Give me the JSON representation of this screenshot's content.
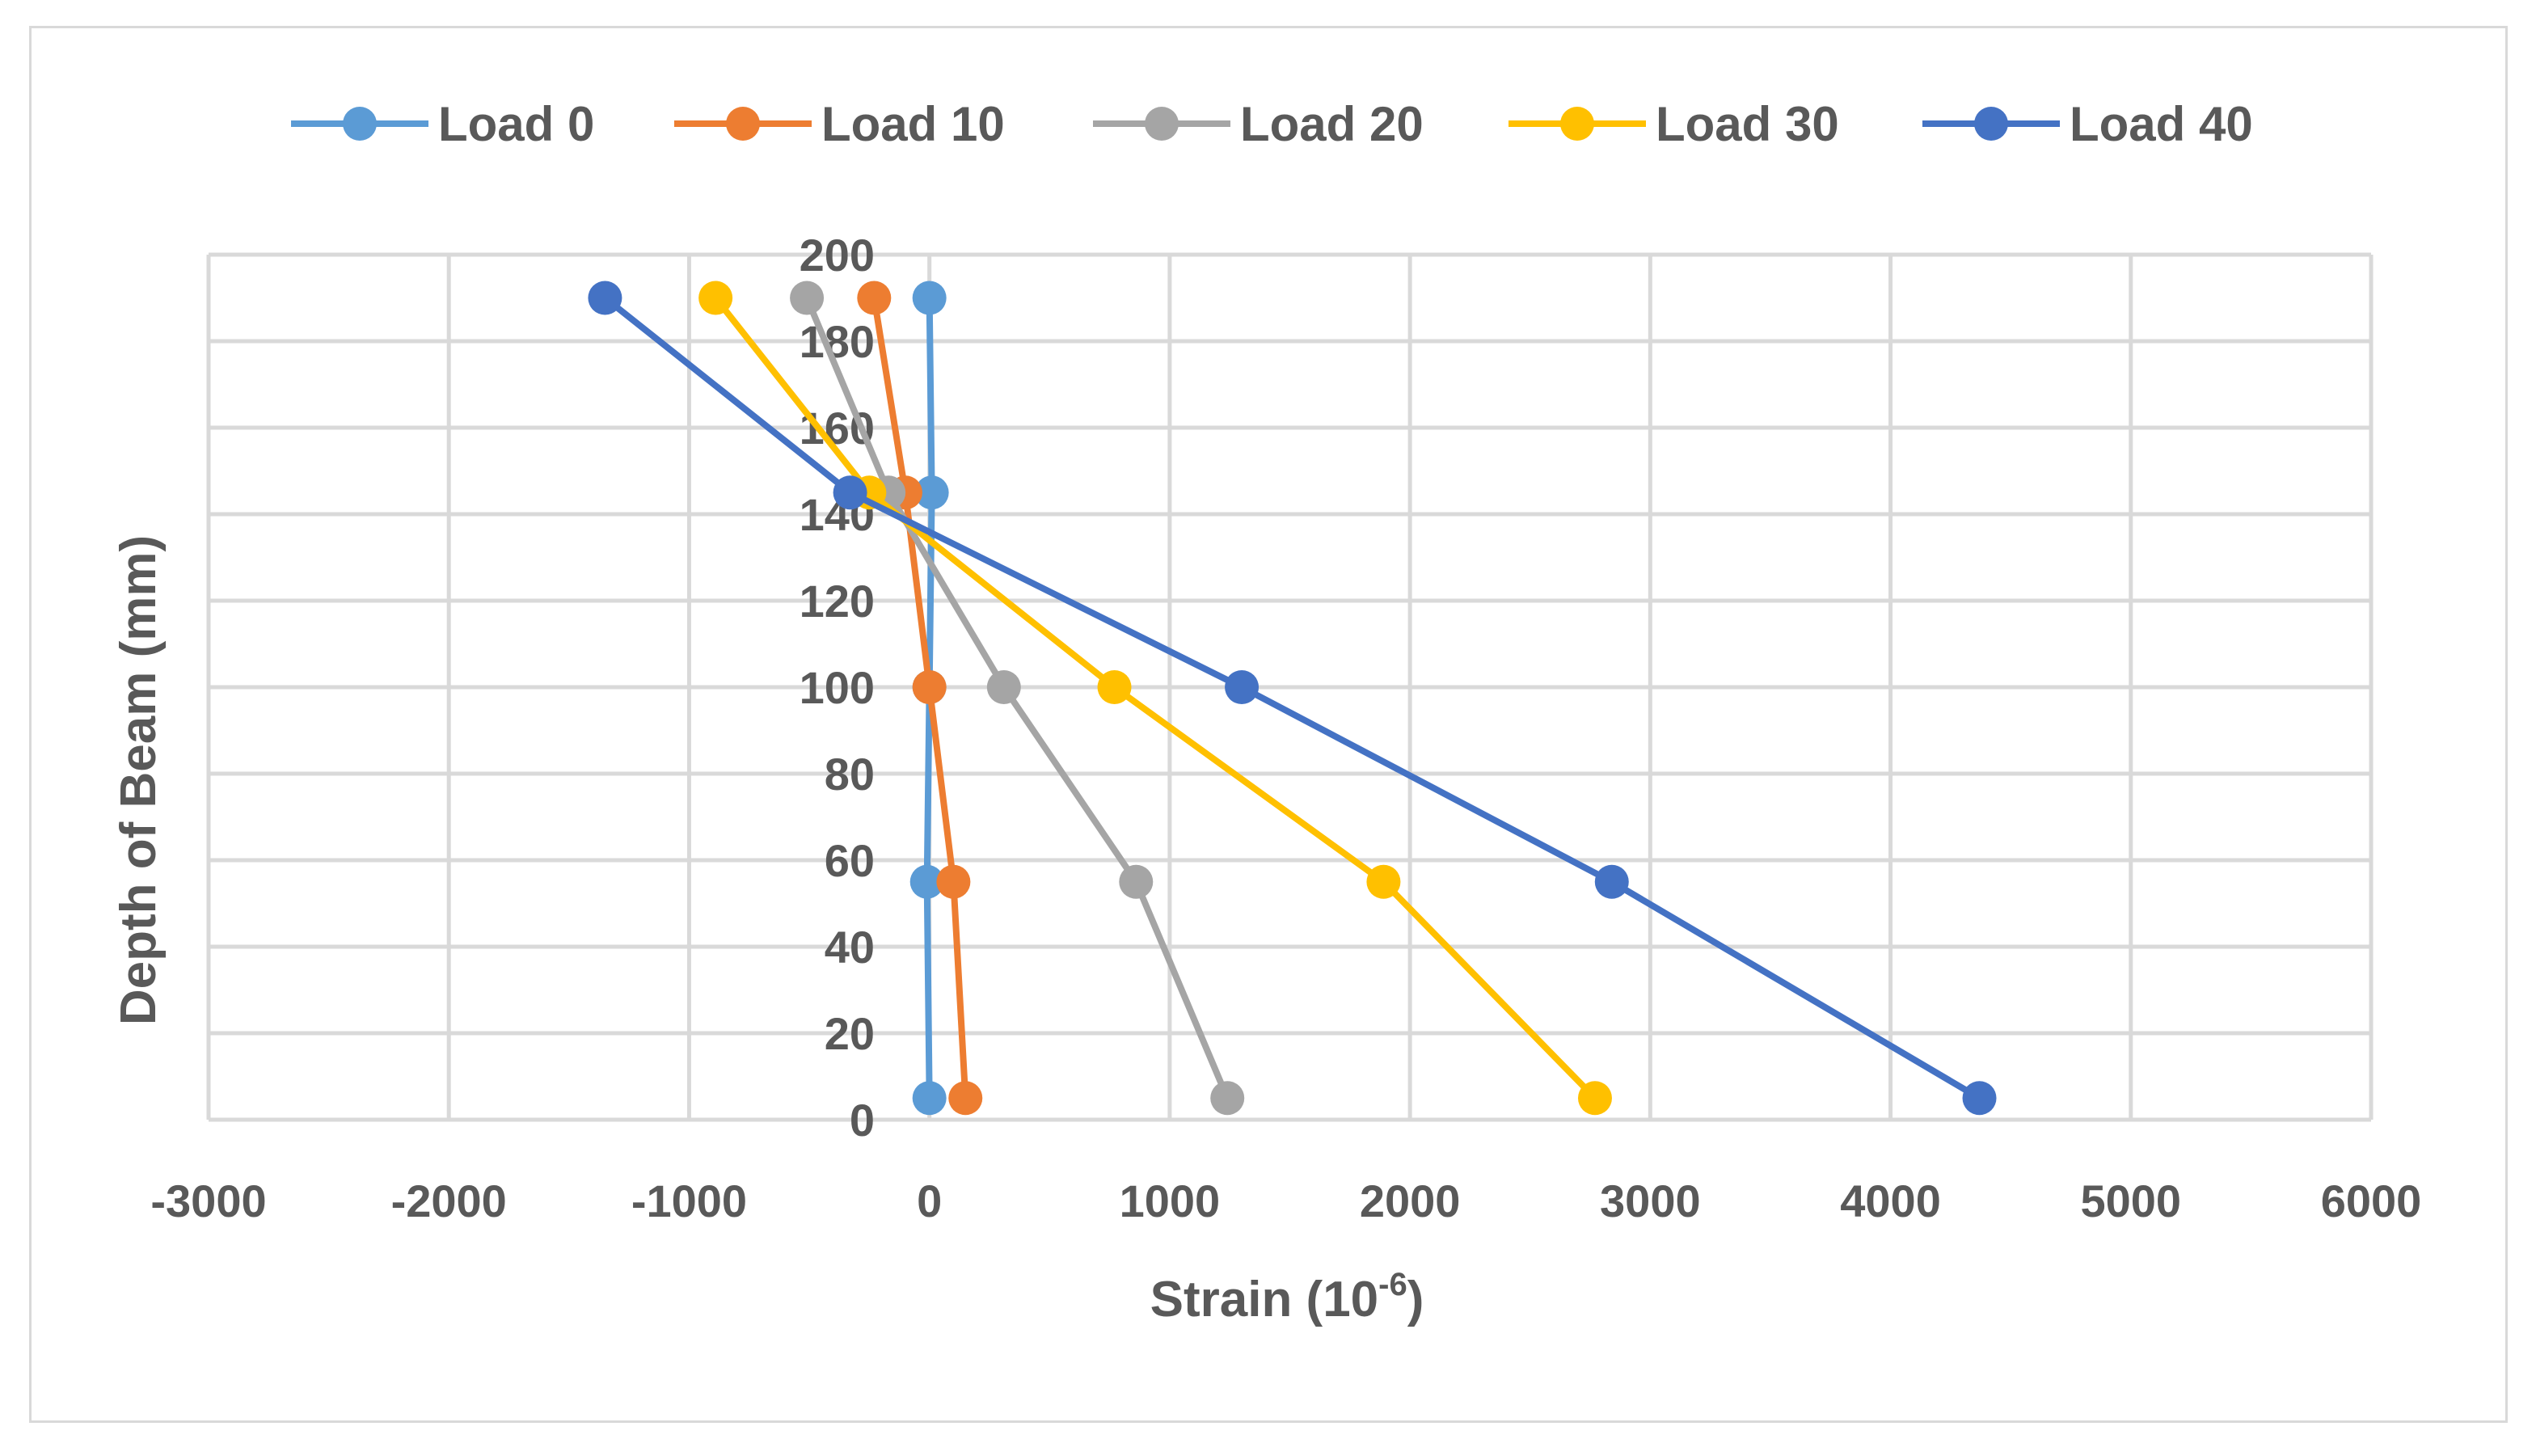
{
  "chart_data": {
    "type": "line",
    "title": "",
    "xlabel": "Strain (10",
    "xlabel_sup": "-6",
    "xlabel_suffix": ")",
    "ylabel": "Depth of Beam (mm)",
    "xlim": [
      -3000,
      6000
    ],
    "ylim": [
      0,
      200
    ],
    "x_ticks": [
      "-3000",
      "-2000",
      "-1000",
      "0",
      "1000",
      "2000",
      "3000",
      "4000",
      "5000",
      "6000"
    ],
    "y_ticks": [
      "0",
      "20",
      "40",
      "60",
      "80",
      "100",
      "120",
      "140",
      "160",
      "180",
      "200"
    ],
    "grid": true,
    "legend_position": "top",
    "series": [
      {
        "name": "Load 0",
        "color": "#5b9bd5",
        "points": [
          {
            "x": 0,
            "y": 190
          },
          {
            "x": 10,
            "y": 145
          },
          {
            "x": 0,
            "y": 100
          },
          {
            "x": -10,
            "y": 55
          },
          {
            "x": 0,
            "y": 5
          }
        ]
      },
      {
        "name": "Load 10",
        "color": "#ed7d31",
        "points": [
          {
            "x": -230,
            "y": 190
          },
          {
            "x": -100,
            "y": 145
          },
          {
            "x": 0,
            "y": 100
          },
          {
            "x": 100,
            "y": 55
          },
          {
            "x": 150,
            "y": 5
          }
        ]
      },
      {
        "name": "Load 20",
        "color": "#a5a5a5",
        "points": [
          {
            "x": -510,
            "y": 190
          },
          {
            "x": -170,
            "y": 145
          },
          {
            "x": 310,
            "y": 100
          },
          {
            "x": 860,
            "y": 55
          },
          {
            "x": 1240,
            "y": 5
          }
        ]
      },
      {
        "name": "Load 30",
        "color": "#ffc000",
        "points": [
          {
            "x": -890,
            "y": 190
          },
          {
            "x": -250,
            "y": 145
          },
          {
            "x": 770,
            "y": 100
          },
          {
            "x": 1890,
            "y": 55
          },
          {
            "x": 2770,
            "y": 5
          }
        ]
      },
      {
        "name": "Load 40",
        "color": "#4472c4",
        "points": [
          {
            "x": -1350,
            "y": 190
          },
          {
            "x": -330,
            "y": 145
          },
          {
            "x": 1300,
            "y": 100
          },
          {
            "x": 2840,
            "y": 55
          },
          {
            "x": 4370,
            "y": 5
          }
        ]
      }
    ]
  }
}
